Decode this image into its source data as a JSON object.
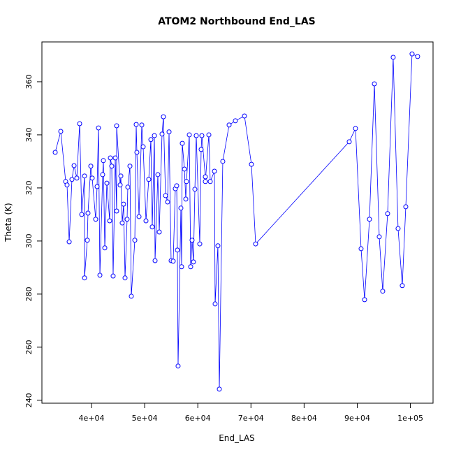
{
  "chart_data": {
    "type": "line",
    "title": "ATOM2 Northbound End_LAS",
    "x_label": "End_LAS",
    "y_label": "Theta (K)",
    "color": "#0000ff",
    "markers": true,
    "x": [
      33170,
      34220,
      35140,
      35400,
      35800,
      36320,
      36720,
      37240,
      37770,
      38160,
      38690,
      38690,
      39210,
      39340,
      39870,
      40130,
      40790,
      41050,
      41310,
      41580,
      42100,
      42230,
      42500,
      42890,
      43420,
      43550,
      43810,
      44070,
      44470,
      44730,
      44730,
      45390,
      45520,
      45780,
      46040,
      46310,
      46700,
      46830,
      47230,
      47490,
      48150,
      48410,
      48540,
      48940,
      49460,
      49720,
      50250,
      50770,
      51170,
      51430,
      51830,
      51960,
      52480,
      52750,
      53270,
      53530,
      53930,
      54320,
      54590,
      54980,
      55370,
      55770,
      56030,
      56160,
      56290,
      56820,
      56950,
      57080,
      57480,
      57740,
      57870,
      58400,
      58660,
      58920,
      59180,
      59450,
      59710,
      60370,
      60630,
      60760,
      61420,
      61420,
      62080,
      62340,
      63130,
      63260,
      63780,
      64050,
      64700,
      65890,
      67070,
      68780,
      70090,
      70880,
      88490,
      89670,
      90720,
      91380,
      92300,
      93220,
      94140,
      94790,
      95710,
      96760,
      97680,
      98470,
      99130,
      100310,
      101360
    ],
    "values": [
      333.4,
      341.3,
      322.4,
      321.1,
      299.7,
      323.2,
      328.4,
      323.7,
      344.2,
      310,
      324.5,
      286.1,
      300.3,
      310.5,
      328.2,
      323.7,
      308.2,
      320.5,
      342.6,
      287.1,
      325,
      330.3,
      297.4,
      321.8,
      307.6,
      331.3,
      328.2,
      286.8,
      331.3,
      311.3,
      343.4,
      321.1,
      324.5,
      306.8,
      313.9,
      286.1,
      308.2,
      320.3,
      328.2,
      279.2,
      300.3,
      343.9,
      333.4,
      309.2,
      343.7,
      335.5,
      307.6,
      323.2,
      338.2,
      305.3,
      339.7,
      292.6,
      325,
      303.4,
      340.3,
      346.8,
      317.1,
      314.7,
      341.1,
      292.6,
      292.4,
      319.7,
      320.8,
      296.6,
      252.9,
      312.4,
      290.3,
      336.8,
      327.1,
      315.8,
      322.4,
      340,
      290.3,
      300.3,
      292.1,
      319.5,
      339.7,
      298.9,
      334.5,
      339.7,
      324.2,
      322.4,
      340,
      322.4,
      326.3,
      276.3,
      298.2,
      244.2,
      330,
      343.7,
      345.3,
      347.1,
      328.9,
      298.9,
      337.4,
      342.4,
      297.1,
      277.9,
      308.2,
      359.2,
      301.6,
      281.1,
      310.3,
      369.2,
      304.7,
      283.2,
      312.9,
      370.5,
      369.5
    ],
    "xlim": [
      30670,
      104260
    ],
    "ylim": [
      238.9,
      375
    ],
    "xticks": [
      {
        "value": 40000,
        "label": "4e+04"
      },
      {
        "value": 50000,
        "label": "5e+04"
      },
      {
        "value": 60000,
        "label": "6e+04"
      },
      {
        "value": 70000,
        "label": "7e+04"
      },
      {
        "value": 80000,
        "label": "8e+04"
      },
      {
        "value": 90000,
        "label": "9e+04"
      },
      {
        "value": 100000,
        "label": "1e+05"
      }
    ],
    "yticks": [
      240,
      260,
      280,
      300,
      320,
      340,
      360
    ]
  }
}
